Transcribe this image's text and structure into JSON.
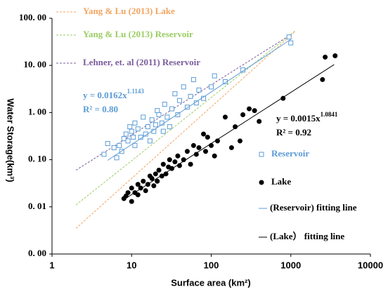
{
  "chart_data": {
    "type": "scatter",
    "x_label": "Surface area (km²)",
    "y_label": "Water Storage(km³)",
    "xscale": "log",
    "yscale": "log",
    "xlim": [
      1,
      10000
    ],
    "ylim": [
      0.001,
      100
    ],
    "xticks": [
      1,
      10,
      100,
      1000,
      10000
    ],
    "yticks": [
      {
        "value": 0.001,
        "label": "0. 00"
      },
      {
        "value": 0.01,
        "label": "0. 01"
      },
      {
        "value": 0.1,
        "label": "0. 10"
      },
      {
        "value": 1,
        "label": "1. 00"
      },
      {
        "value": 10,
        "label": "10. 00"
      },
      {
        "value": 100,
        "label": "100. 00"
      }
    ],
    "series": [
      {
        "name": "Yang & Lu (2013) Lake",
        "color": "#f4a460",
        "style": "dashed",
        "x": [
          2,
          1100
        ],
        "values": [
          0.0035,
          50
        ]
      },
      {
        "name": "Yang & Lu (2013) Reservoir",
        "color": "#9acd63",
        "style": "dashed",
        "x": [
          2,
          1150
        ],
        "values": [
          0.011,
          55
        ]
      },
      {
        "name": "Lehner, et. al (2011) Reservoir",
        "color": "#7a5c9c",
        "style": "dashed",
        "x": [
          2,
          1000
        ],
        "values": [
          0.06,
          45
        ]
      },
      {
        "name": "Reservoir",
        "color": "#5b9bd5",
        "style": "square",
        "x": [
          4.5,
          5,
          6,
          6.5,
          7,
          7.5,
          8,
          8.5,
          9,
          9.5,
          10,
          10.5,
          11,
          11,
          12,
          13,
          14,
          15,
          16,
          17,
          18,
          19,
          20,
          21,
          22,
          24,
          25,
          26,
          28,
          30,
          32,
          35,
          38,
          40,
          45,
          50,
          55,
          60,
          65,
          70,
          80,
          100,
          110,
          150,
          250,
          950,
          1000
        ],
        "values": [
          0.13,
          0.22,
          0.18,
          0.11,
          0.2,
          0.15,
          0.28,
          0.35,
          0.25,
          0.5,
          0.4,
          0.3,
          0.2,
          0.6,
          0.45,
          0.3,
          0.8,
          0.35,
          0.5,
          0.25,
          0.7,
          0.4,
          0.55,
          1.1,
          0.9,
          0.6,
          0.4,
          1.5,
          0.8,
          0.5,
          1.2,
          2.5,
          0.9,
          1.8,
          3.5,
          1.3,
          2.2,
          5,
          1.6,
          3,
          2,
          3.5,
          6,
          4.5,
          8,
          40,
          30
        ]
      },
      {
        "name": "Lake",
        "color": "#000000",
        "style": "circle",
        "x": [
          8,
          8.5,
          9,
          10,
          10,
          11,
          12,
          12,
          13,
          14,
          15,
          16,
          17,
          18,
          19,
          20,
          21,
          22,
          24,
          25,
          27,
          29,
          30,
          32,
          35,
          38,
          40,
          45,
          50,
          55,
          60,
          65,
          70,
          80,
          85,
          90,
          100,
          110,
          120,
          150,
          180,
          200,
          230,
          250,
          300,
          350,
          400,
          800,
          2500,
          2700,
          3600
        ],
        "values": [
          0.015,
          0.017,
          0.02,
          0.013,
          0.025,
          0.02,
          0.03,
          0.018,
          0.025,
          0.035,
          0.022,
          0.03,
          0.045,
          0.04,
          0.028,
          0.05,
          0.035,
          0.06,
          0.045,
          0.08,
          0.05,
          0.07,
          0.1,
          0.065,
          0.09,
          0.12,
          0.075,
          0.1,
          0.15,
          0.08,
          0.2,
          0.13,
          0.18,
          0.35,
          0.15,
          0.3,
          0.2,
          0.12,
          0.25,
          0.8,
          0.18,
          0.5,
          0.25,
          0.9,
          1.2,
          1.1,
          0.65,
          2,
          5,
          15,
          16
        ]
      },
      {
        "name": "(Reservoir) fitting line",
        "color": "#5b9bd5",
        "style": "solid",
        "x": [
          5,
          1000
        ],
        "values": [
          0.097,
          35.6
        ]
      },
      {
        "name": "(Lake） fitting line",
        "color": "#000000",
        "style": "solid",
        "x": [
          8,
          3500
        ],
        "values": [
          0.0143,
          10.4
        ]
      }
    ],
    "annotations": [
      {
        "text": "y = 0.0162x",
        "superscript": "1.1143",
        "color": "#5b9bd5"
      },
      {
        "text": "R² = 0.80",
        "color": "#5b9bd5"
      },
      {
        "text": "y = 0.0015x",
        "superscript": "1.0841",
        "color": "#000000"
      },
      {
        "text": "R² = 0.92",
        "color": "#000000"
      }
    ]
  }
}
